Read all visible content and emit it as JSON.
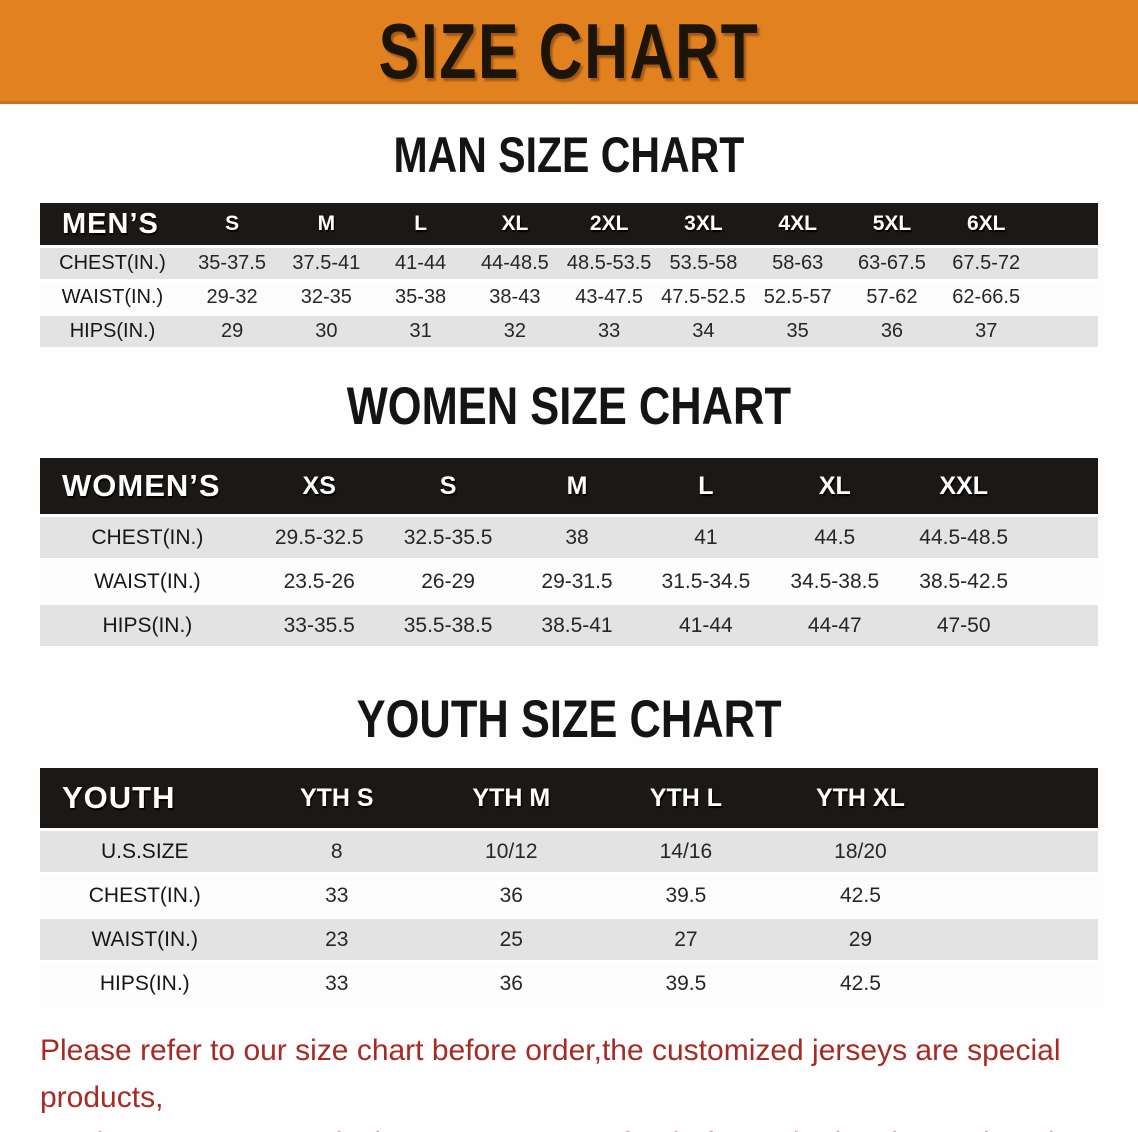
{
  "banner": {
    "title": "SIZE CHART"
  },
  "colors": {
    "banner_orange": "#e2811f",
    "header_black": "#1b1815",
    "row_gray": "#e3e3e3",
    "disclaimer_red": "#a72b24"
  },
  "sections": [
    {
      "heading": "MAN SIZE CHART",
      "table": {
        "label": "MEN’S",
        "columns": [
          "S",
          "M",
          "L",
          "XL",
          "2XL",
          "3XL",
          "4XL",
          "5XL",
          "6XL"
        ],
        "rows": [
          {
            "label": "CHEST(IN.)",
            "values": [
              "35-37.5",
              "37.5-41",
              "41-44",
              "44-48.5",
              "48.5-53.5",
              "53.5-58",
              "58-63",
              "63-67.5",
              "67.5-72"
            ]
          },
          {
            "label": "WAIST(IN.)",
            "values": [
              "29-32",
              "32-35",
              "35-38",
              "38-43",
              "43-47.5",
              "47.5-52.5",
              "52.5-57",
              "57-62",
              "62-66.5"
            ]
          },
          {
            "label": "HIPS(IN.)",
            "values": [
              "29",
              "30",
              "31",
              "32",
              "33",
              "34",
              "35",
              "36",
              "37"
            ]
          }
        ]
      }
    },
    {
      "heading": "WOMEN SIZE CHART",
      "table": {
        "label": "WOMEN’S",
        "columns": [
          "XS",
          "S",
          "M",
          "L",
          "XL",
          "XXL"
        ],
        "rows": [
          {
            "label": "CHEST(IN.)",
            "values": [
              "29.5-32.5",
              "32.5-35.5",
              "38",
              "41",
              "44.5",
              "44.5-48.5"
            ]
          },
          {
            "label": "WAIST(IN.)",
            "values": [
              "23.5-26",
              "26-29",
              "29-31.5",
              "31.5-34.5",
              "34.5-38.5",
              "38.5-42.5"
            ]
          },
          {
            "label": "HIPS(IN.)",
            "values": [
              "33-35.5",
              "35.5-38.5",
              "38.5-41",
              "41-44",
              "44-47",
              "47-50"
            ]
          }
        ]
      }
    },
    {
      "heading": "YOUTH SIZE CHART",
      "table": {
        "label": "YOUTH",
        "columns": [
          "YTH S",
          "YTH M",
          "YTH L",
          "YTH XL"
        ],
        "rows": [
          {
            "label": "U.S.SIZE",
            "values": [
              "8",
              "10/12",
              "14/16",
              "18/20"
            ]
          },
          {
            "label": "CHEST(IN.)",
            "values": [
              "33",
              "36",
              "39.5",
              "42.5"
            ]
          },
          {
            "label": "WAIST(IN.)",
            "values": [
              "23",
              "25",
              "27",
              "29"
            ]
          },
          {
            "label": "HIPS(IN.)",
            "values": [
              "33",
              "36",
              "39.5",
              "42.5"
            ]
          }
        ]
      }
    }
  ],
  "disclaimer": {
    "line1": "Please refer to our size chart before order,the customized jerseys are special products,",
    "line2": "we don't accept cancel, change, teturn or refund after order has been placed!"
  }
}
